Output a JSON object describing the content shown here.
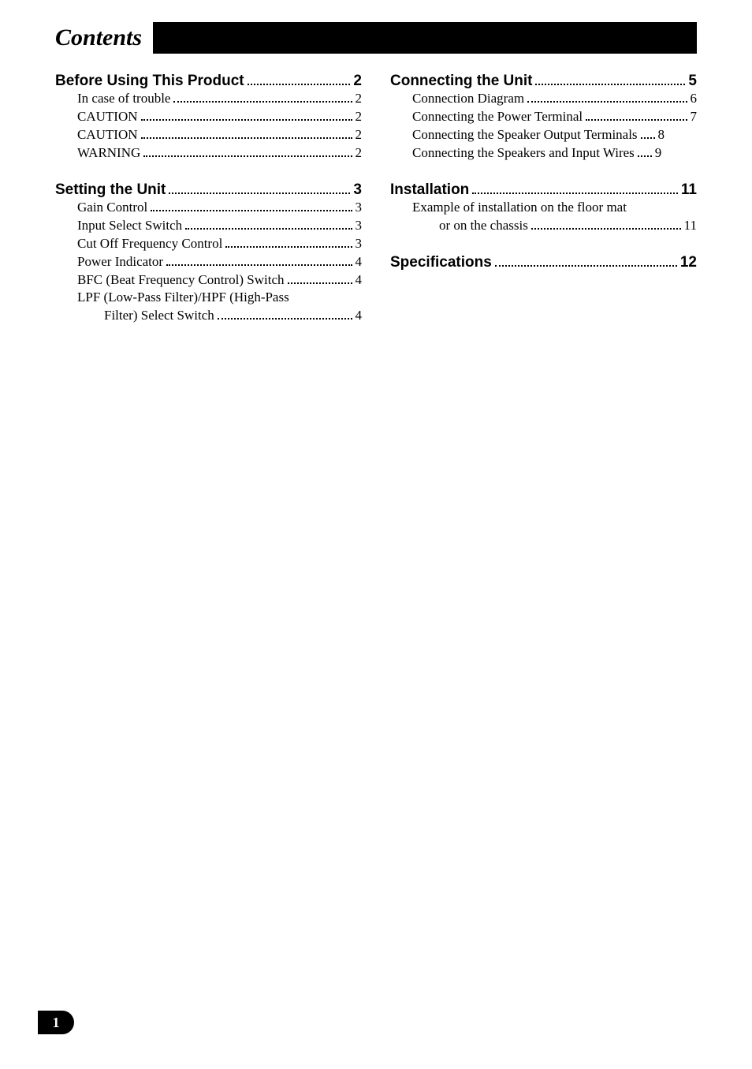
{
  "title": "Contents",
  "page_number": "1",
  "colors": {
    "background": "#ffffff",
    "text": "#000000",
    "bar": "#000000",
    "badge_bg": "#000000",
    "badge_text": "#ffffff"
  },
  "typography": {
    "title_fontsize": 30,
    "section_fontsize": 19,
    "entry_fontsize": 17,
    "title_family": "Times New Roman",
    "section_family": "Arial",
    "entry_family": "Times New Roman"
  },
  "left": {
    "sections": [
      {
        "title": "Before Using This Product",
        "page": "2",
        "entries": [
          {
            "label": "In case of trouble",
            "page": "2"
          },
          {
            "label": "CAUTION",
            "page": "2"
          },
          {
            "label": "CAUTION",
            "page": "2"
          },
          {
            "label": "WARNING",
            "page": "2"
          }
        ]
      },
      {
        "title": "Setting the Unit",
        "page": "3",
        "entries": [
          {
            "label": "Gain Control",
            "page": "3"
          },
          {
            "label": "Input Select Switch",
            "page": "3"
          },
          {
            "label": "Cut Off Frequency Control",
            "page": "3"
          },
          {
            "label": "Power Indicator",
            "page": "4"
          },
          {
            "label": "BFC (Beat Frequency Control) Switch",
            "page": "4"
          },
          {
            "label": "LPF (Low-Pass Filter)/HPF (High-Pass",
            "cont": "Filter) Select Switch",
            "page": "4"
          }
        ]
      }
    ]
  },
  "right": {
    "sections": [
      {
        "title": "Connecting the Unit",
        "page": "5",
        "entries": [
          {
            "label": "Connection Diagram",
            "page": "6"
          },
          {
            "label": "Connecting the Power Terminal",
            "page": "7"
          },
          {
            "label": "Connecting the Speaker Output Terminals",
            "page": "8",
            "short_leader": true
          },
          {
            "label": "Connecting the Speakers and Input Wires",
            "page": "9",
            "short_leader": true
          }
        ]
      },
      {
        "title": "Installation",
        "page": "11",
        "entries": [
          {
            "label": "Example of installation on the floor mat",
            "cont": "or on the chassis",
            "page": "11"
          }
        ]
      },
      {
        "title": "Specifications",
        "page": "12",
        "entries": []
      }
    ]
  }
}
